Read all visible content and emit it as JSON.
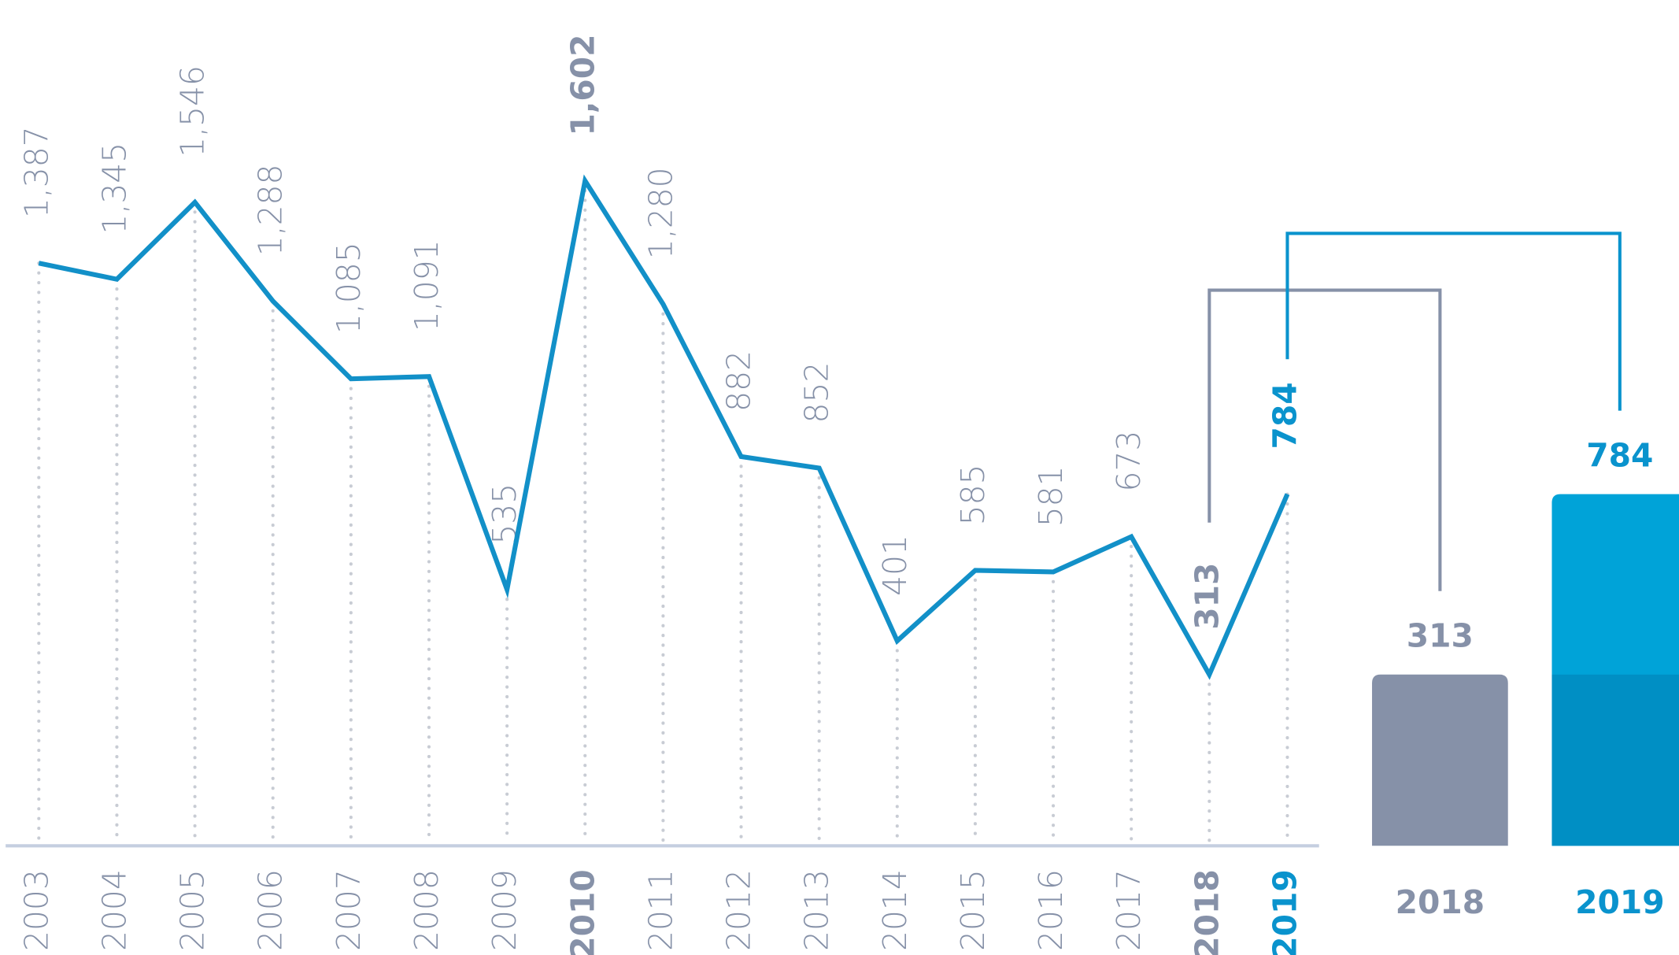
{
  "chart_data": [
    {
      "type": "line",
      "categories": [
        "2003",
        "2004",
        "2005",
        "2006",
        "2007",
        "2008",
        "2009",
        "2010",
        "2011",
        "2012",
        "2013",
        "2014",
        "2015",
        "2016",
        "2017",
        "2018",
        "2019"
      ],
      "series": [
        {
          "color": "#1290c8",
          "values": [
            1387,
            1345,
            1546,
            1288,
            1085,
            1091,
            535,
            1602,
            1280,
            882,
            852,
            401,
            585,
            581,
            673,
            313,
            784
          ],
          "value_labels": [
            "1,387",
            "1,345",
            "1,546",
            "1,288",
            "1,085",
            "1,091",
            "535",
            "1,602",
            "1,280",
            "882",
            "852",
            "401",
            "585",
            "581",
            "673",
            "313",
            "784"
          ]
        }
      ],
      "ylim": [
        -134,
        2074
      ],
      "grid": true
    },
    {
      "type": "bar",
      "categories": [
        "2018",
        "2019"
      ],
      "values": [
        313,
        784
      ],
      "colors": [
        "#8691a8",
        "#00a3d8"
      ],
      "ylim": [
        -134,
        2074
      ]
    }
  ]
}
